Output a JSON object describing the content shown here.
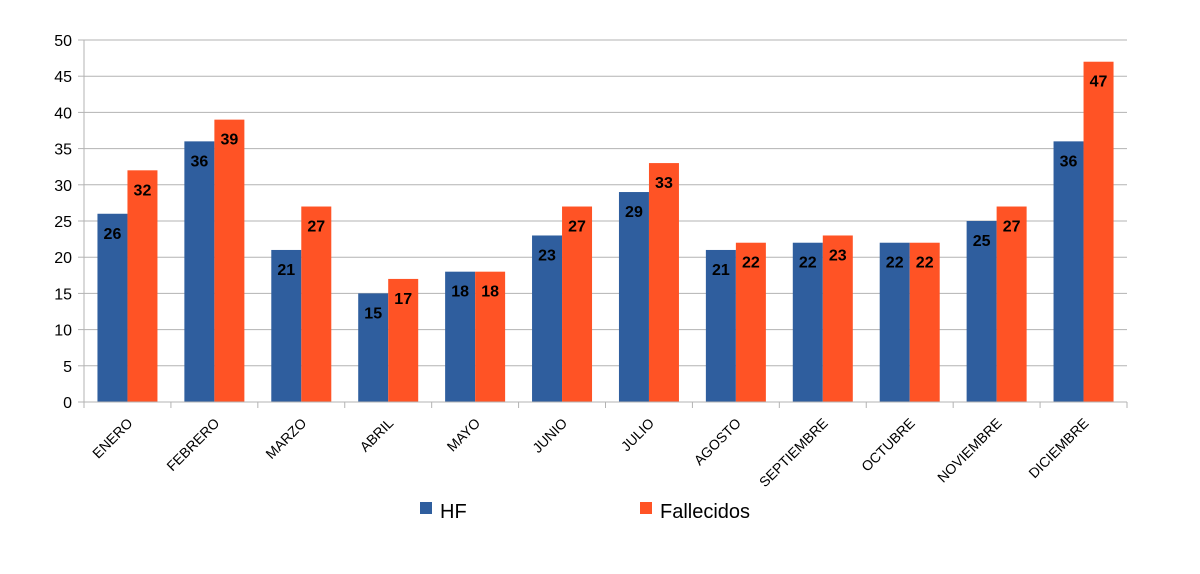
{
  "chart_data": {
    "type": "bar",
    "title": "",
    "xlabel": "",
    "ylabel": "",
    "ylim": [
      0,
      50
    ],
    "yticks": [
      0,
      5,
      10,
      15,
      20,
      25,
      30,
      35,
      40,
      45,
      50
    ],
    "grid": true,
    "legend_position": "bottom",
    "categories": [
      "ENERO",
      "FEBRERO",
      "MARZO",
      "ABRIL",
      "MAYO",
      "JUNIO",
      "JULIO",
      "AGOSTO",
      "SEPTIEMBRE",
      "OCTUBRE",
      "NOVIEMBRE",
      "DICIEMBRE"
    ],
    "series": [
      {
        "name": "HF",
        "color": "#2F5E9E",
        "values": [
          26,
          36,
          21,
          15,
          18,
          23,
          29,
          21,
          22,
          22,
          25,
          36
        ]
      },
      {
        "name": "Fallecidos",
        "color": "#FF5325",
        "values": [
          32,
          39,
          27,
          17,
          18,
          27,
          33,
          22,
          23,
          22,
          27,
          47
        ]
      }
    ]
  }
}
